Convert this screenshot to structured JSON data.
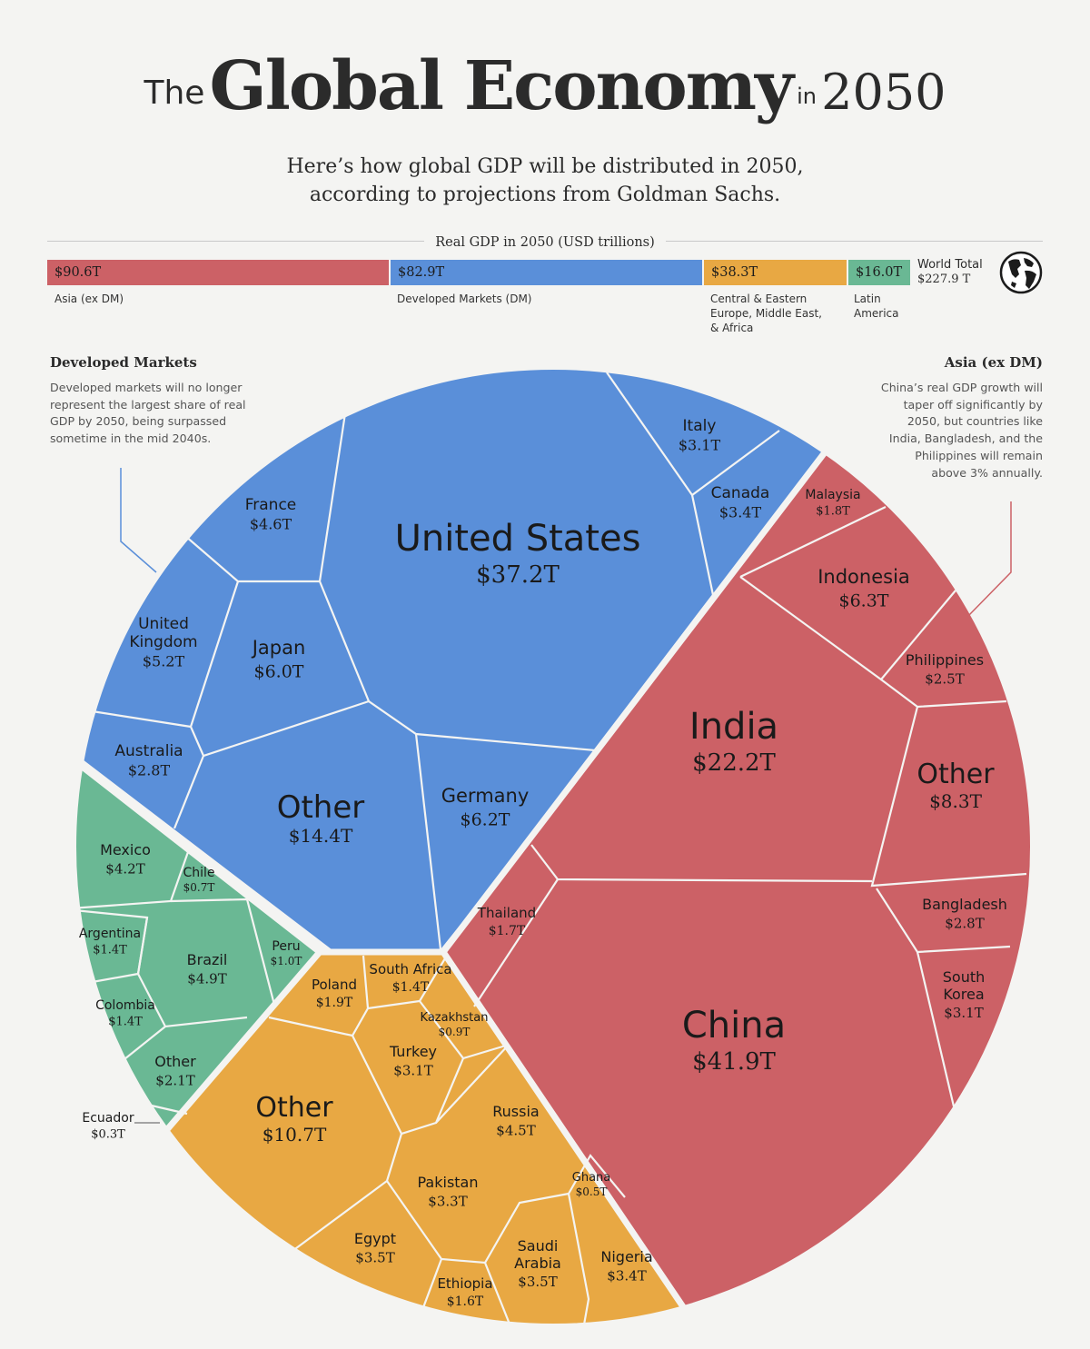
{
  "title": {
    "prefix": "The",
    "main": "Global Economy",
    "in": "in",
    "year": "2050"
  },
  "subtitle": {
    "line1": "Here’s how global GDP will be distributed in 2050,",
    "line2": "according to projections from Goldman Sachs."
  },
  "summary_bar": {
    "title": "Real GDP in 2050 (USD trillions)",
    "segments": [
      {
        "value_label": "$90.6T",
        "value": 90.6,
        "name": "Asia (ex DM)",
        "color": "#cc6166"
      },
      {
        "value_label": "$82.9T",
        "value": 82.9,
        "name": "Developed Markets (DM)",
        "color": "#5a8fd9"
      },
      {
        "value_label": "$38.3T",
        "value": 38.3,
        "name_lines": [
          "Central & Eastern",
          "Europe, Middle East,",
          "& Africa"
        ],
        "color": "#e8a843"
      },
      {
        "value_label": "$16.0T",
        "value": 16.0,
        "name_lines": [
          "Latin",
          "America"
        ],
        "color": "#6ab894"
      }
    ],
    "world_total_label": "World Total",
    "world_total_value": "$227.9 T",
    "globe_icon": "globe-icon"
  },
  "notes": {
    "developed": {
      "heading": "Developed Markets",
      "lines": [
        "Developed markets will no longer",
        "represent the largest share of real",
        "GDP by 2050, being surpassed",
        "sometime in the mid 2040s."
      ]
    },
    "asia": {
      "heading": "Asia (ex DM)",
      "lines": [
        "China’s real GDP growth will",
        "taper off significantly by",
        "2050, but countries like",
        "India, Bangladesh, and the",
        "Philippines will remain",
        "above 3% annually."
      ]
    }
  },
  "chart_data": {
    "type": "voronoi-treemap",
    "unit": "USD trillions",
    "groups": [
      {
        "name": "Developed Markets",
        "color": "#5a8fd9",
        "cells": [
          {
            "name": "United States",
            "value": 37.2,
            "value_label": "$37.2T"
          },
          {
            "name": "Other",
            "value": 14.4,
            "value_label": "$14.4T"
          },
          {
            "name": "Germany",
            "value": 6.2,
            "value_label": "$6.2T"
          },
          {
            "name": "Japan",
            "value": 6.0,
            "value_label": "$6.0T"
          },
          {
            "name": "United Kingdom",
            "value": 5.2,
            "value_label": "$5.2T"
          },
          {
            "name": "France",
            "value": 4.6,
            "value_label": "$4.6T"
          },
          {
            "name": "Canada",
            "value": 3.4,
            "value_label": "$3.4T"
          },
          {
            "name": "Italy",
            "value": 3.1,
            "value_label": "$3.1T"
          },
          {
            "name": "Australia",
            "value": 2.8,
            "value_label": "$2.8T"
          }
        ]
      },
      {
        "name": "Asia (ex DM)",
        "color": "#cc6166",
        "cells": [
          {
            "name": "China",
            "value": 41.9,
            "value_label": "$41.9T"
          },
          {
            "name": "India",
            "value": 22.2,
            "value_label": "$22.2T"
          },
          {
            "name": "Other",
            "value": 8.3,
            "value_label": "$8.3T"
          },
          {
            "name": "Indonesia",
            "value": 6.3,
            "value_label": "$6.3T"
          },
          {
            "name": "South Korea",
            "value": 3.1,
            "value_label": "$3.1T"
          },
          {
            "name": "Bangladesh",
            "value": 2.8,
            "value_label": "$2.8T"
          },
          {
            "name": "Philippines",
            "value": 2.5,
            "value_label": "$2.5T"
          },
          {
            "name": "Malaysia",
            "value": 1.8,
            "value_label": "$1.8T"
          },
          {
            "name": "Thailand",
            "value": 1.7,
            "value_label": "$1.7T"
          }
        ]
      },
      {
        "name": "Central & Eastern Europe, Middle East, & Africa",
        "color": "#e8a843",
        "cells": [
          {
            "name": "Other",
            "value": 10.7,
            "value_label": "$10.7T"
          },
          {
            "name": "Russia",
            "value": 4.5,
            "value_label": "$4.5T"
          },
          {
            "name": "Egypt",
            "value": 3.5,
            "value_label": "$3.5T"
          },
          {
            "name": "Saudi Arabia",
            "value": 3.5,
            "value_label": "$3.5T"
          },
          {
            "name": "Nigeria",
            "value": 3.4,
            "value_label": "$3.4T"
          },
          {
            "name": "Pakistan",
            "value": 3.3,
            "value_label": "$3.3T"
          },
          {
            "name": "Turkey",
            "value": 3.1,
            "value_label": "$3.1T"
          },
          {
            "name": "Poland",
            "value": 1.9,
            "value_label": "$1.9T"
          },
          {
            "name": "Ethiopia",
            "value": 1.6,
            "value_label": "$1.6T"
          },
          {
            "name": "South Africa",
            "value": 1.4,
            "value_label": "$1.4T"
          },
          {
            "name": "Kazakhstan",
            "value": 0.9,
            "value_label": "$0.9T"
          },
          {
            "name": "Ghana",
            "value": 0.5,
            "value_label": "$0.5T"
          }
        ]
      },
      {
        "name": "Latin America",
        "color": "#6ab894",
        "cells": [
          {
            "name": "Brazil",
            "value": 4.9,
            "value_label": "$4.9T"
          },
          {
            "name": "Mexico",
            "value": 4.2,
            "value_label": "$4.2T"
          },
          {
            "name": "Other",
            "value": 2.1,
            "value_label": "$2.1T"
          },
          {
            "name": "Argentina",
            "value": 1.4,
            "value_label": "$1.4T"
          },
          {
            "name": "Colombia",
            "value": 1.4,
            "value_label": "$1.4T"
          },
          {
            "name": "Peru",
            "value": 1.0,
            "value_label": "$1.0T"
          },
          {
            "name": "Chile",
            "value": 0.7,
            "value_label": "$0.7T"
          },
          {
            "name": "Ecuador",
            "value": 0.3,
            "value_label": "$0.3T"
          }
        ]
      }
    ]
  }
}
